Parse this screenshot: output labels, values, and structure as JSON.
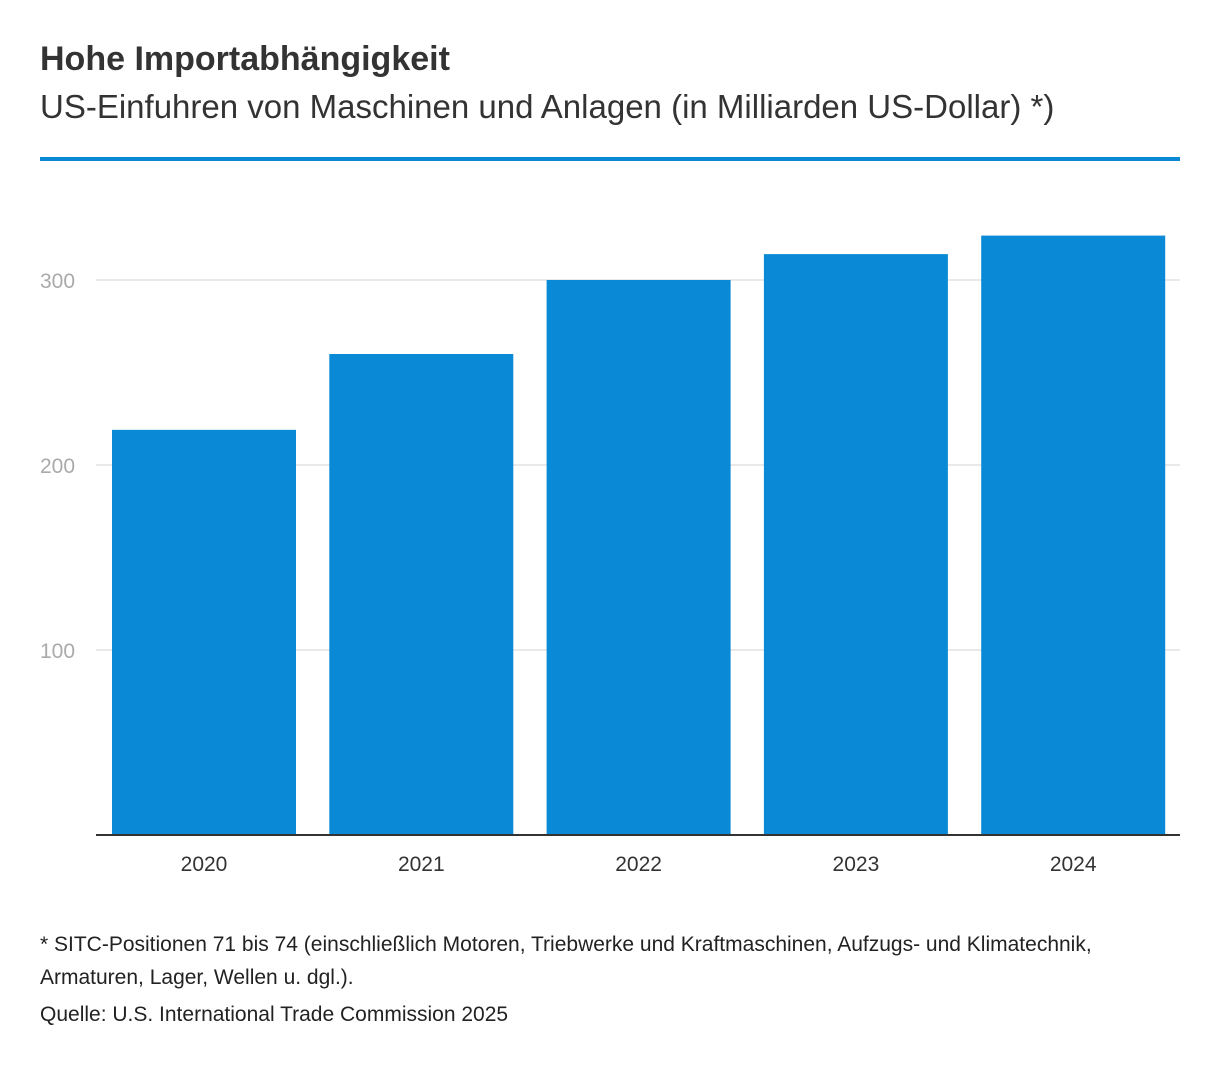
{
  "header": {
    "title": "Hohe Importabhängigkeit",
    "subtitle": "US-Einfuhren von Maschinen und Anlagen (in Milliarden US-Dollar) *)"
  },
  "colors": {
    "accent": "#0a88d5",
    "bar": "#0a8ad6",
    "grid": "#e2e2e2",
    "tick_text": "#aaaaaa",
    "axis": "#333333"
  },
  "chart_data": {
    "type": "bar",
    "categories": [
      "2020",
      "2021",
      "2022",
      "2023",
      "2024"
    ],
    "values": [
      219,
      260,
      300,
      314,
      324
    ],
    "yticks": [
      100,
      200,
      300
    ],
    "ylim": [
      0,
      336
    ],
    "grid": true,
    "xlabel": "",
    "ylabel": ""
  },
  "footer": {
    "footnote": "* SITC-Positionen 71 bis 74 (einschließlich Motoren, Triebwerke und Kraftmaschinen, Aufzugs- und Klimatechnik, Armaturen, Lager, Wellen u. dgl.).",
    "source": "Quelle: U.S. International Trade Commission 2025"
  }
}
